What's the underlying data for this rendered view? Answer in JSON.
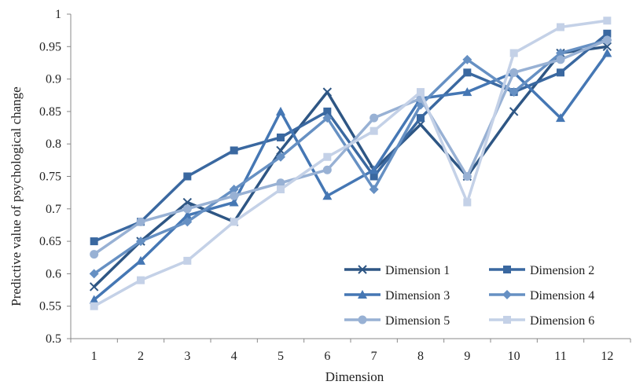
{
  "chart_data": {
    "type": "line",
    "xlabel": "Dimension",
    "ylabel": "Predictive value of psychological change",
    "categories": [
      "1",
      "2",
      "3",
      "4",
      "5",
      "6",
      "7",
      "8",
      "9",
      "10",
      "11",
      "12"
    ],
    "ylim": [
      0.5,
      1
    ],
    "yticks": [
      "0.5",
      "0.55",
      "0.6",
      "0.65",
      "0.7",
      "0.75",
      "0.8",
      "0.85",
      "0.9",
      "0.95",
      "1"
    ],
    "grid": false,
    "legend_position": "bottom-right",
    "series": [
      {
        "name": "Dimension 1",
        "marker": "x",
        "color": "#2e5684",
        "values": [
          0.58,
          0.65,
          0.71,
          0.68,
          0.79,
          0.88,
          0.76,
          0.83,
          0.75,
          0.85,
          0.94,
          0.95
        ]
      },
      {
        "name": "Dimension 2",
        "marker": "square",
        "color": "#3a68a0",
        "values": [
          0.65,
          0.68,
          0.75,
          0.79,
          0.81,
          0.85,
          0.75,
          0.84,
          0.91,
          0.88,
          0.91,
          0.97
        ]
      },
      {
        "name": "Dimension 3",
        "marker": "triangle",
        "color": "#4577b4",
        "values": [
          0.56,
          0.62,
          0.69,
          0.71,
          0.85,
          0.72,
          0.76,
          0.87,
          0.88,
          0.91,
          0.84,
          0.94
        ]
      },
      {
        "name": "Dimension 4",
        "marker": "diamond",
        "color": "#6690c3",
        "values": [
          0.6,
          0.65,
          0.68,
          0.73,
          0.78,
          0.84,
          0.73,
          0.86,
          0.93,
          0.88,
          0.94,
          0.96
        ]
      },
      {
        "name": "Dimension 5",
        "marker": "circle",
        "color": "#98b1d4",
        "values": [
          0.63,
          0.68,
          0.7,
          0.72,
          0.74,
          0.76,
          0.84,
          0.87,
          0.75,
          0.91,
          0.93,
          0.96
        ]
      },
      {
        "name": "Dimension 6",
        "marker": "square",
        "color": "#c4d1e7",
        "values": [
          0.55,
          0.59,
          0.62,
          0.68,
          0.73,
          0.78,
          0.82,
          0.88,
          0.71,
          0.94,
          0.98,
          0.99
        ]
      }
    ]
  }
}
